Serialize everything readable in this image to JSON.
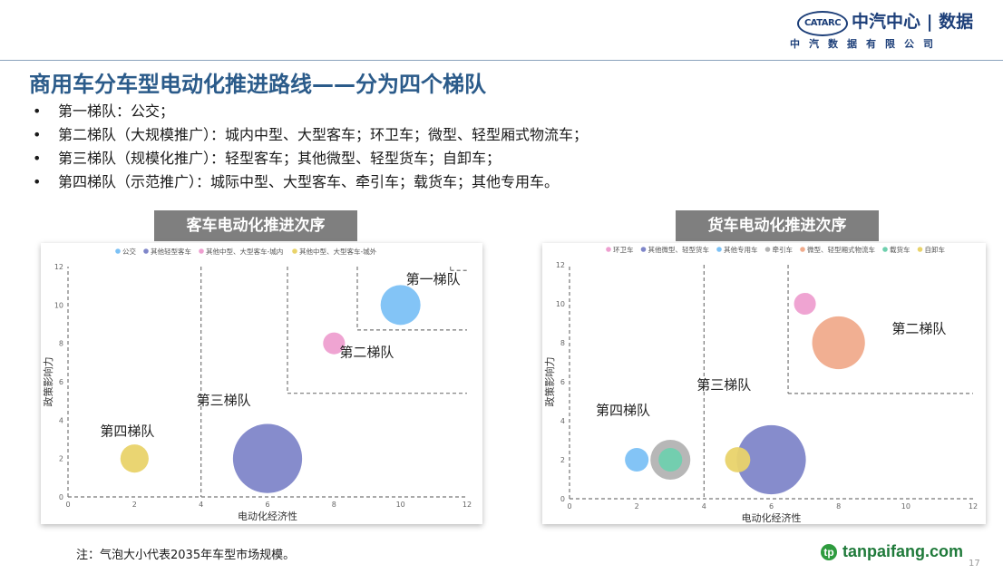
{
  "header": {
    "logo_mark": "CATARC",
    "logo_name": "中汽中心 | 数据",
    "logo_sub": "中汽数据有限公司"
  },
  "slide": {
    "title": "商用车分车型电动化推进路线——分为四个梯队",
    "bullets": [
      "第一梯队：公交；",
      "第二梯队（大规模推广）：城内中型、大型客车；环卫车；微型、轻型厢式物流车；",
      "第三梯队（规模化推广）：轻型客车；其他微型、轻型货车；自卸车；",
      "第四梯队（示范推广）：城际中型、大型客车、牵引车；载货车；其他专用车。"
    ],
    "bullet_marker": "•",
    "note": "注：气泡大小代表2035年车型市场规模。",
    "watermark": "tanpaifang.com",
    "page_number": "17"
  },
  "chart_data": [
    {
      "type": "scatter",
      "panel_title": "客车电动化推进次序",
      "xlabel": "电动化经济性",
      "ylabel": "政策影响力",
      "xlim": [
        0,
        12
      ],
      "ylim": [
        0,
        12
      ],
      "xticks": [
        0,
        2,
        4,
        6,
        8,
        10,
        12
      ],
      "yticks": [
        0,
        2,
        4,
        6,
        8,
        10,
        12
      ],
      "grid": false,
      "legend_position": "top",
      "series": [
        {
          "name": "公交",
          "color": "#7cc1f5",
          "points": [
            {
              "x": 10,
              "y": 10,
              "size": 1.0
            }
          ]
        },
        {
          "name": "其他轻型客车",
          "color": "#7f86c9",
          "points": [
            {
              "x": 6,
              "y": 2,
              "size": 3.0
            }
          ]
        },
        {
          "name": "其他中型、大型客车-城内",
          "color": "#ee9fd0",
          "points": [
            {
              "x": 8,
              "y": 8,
              "size": 0.3
            }
          ]
        },
        {
          "name": "其他中型、大型客车-城外",
          "color": "#e9d36a",
          "points": [
            {
              "x": 2,
              "y": 2,
              "size": 0.5
            }
          ]
        }
      ],
      "tier_labels": [
        {
          "text": "第一梯队",
          "x": 11.8,
          "y": 11.1
        },
        {
          "text": "第二梯队",
          "x": 9.8,
          "y": 7.3
        },
        {
          "text": "第三梯队",
          "x": 5.5,
          "y": 4.8
        },
        {
          "text": "第四梯队",
          "x": 2.6,
          "y": 3.2
        }
      ],
      "tier_boundaries": [
        {
          "x": 4,
          "y": 12
        },
        {
          "x": 6.6,
          "y": 5.4
        },
        {
          "x": 8.7,
          "y": 8.7
        },
        {
          "x": 11.5,
          "y": 11.8
        }
      ]
    },
    {
      "type": "scatter",
      "panel_title": "货车电动化推进次序",
      "xlabel": "电动化经济性",
      "ylabel": "政策影响力",
      "xlim": [
        0,
        12
      ],
      "ylim": [
        0,
        12
      ],
      "xticks": [
        0,
        2,
        4,
        6,
        8,
        10,
        12
      ],
      "yticks": [
        0,
        2,
        4,
        6,
        8,
        10,
        12
      ],
      "grid": false,
      "legend_position": "top",
      "series": [
        {
          "name": "环卫车",
          "color": "#ee9fd0",
          "points": [
            {
              "x": 7,
              "y": 10,
              "size": 0.3
            }
          ]
        },
        {
          "name": "其他微型、轻型货车",
          "color": "#7f86c9",
          "points": [
            {
              "x": 6,
              "y": 2,
              "size": 3.0
            }
          ]
        },
        {
          "name": "其他专用车",
          "color": "#7cc1f5",
          "points": [
            {
              "x": 2,
              "y": 2,
              "size": 0.35
            }
          ]
        },
        {
          "name": "牵引车",
          "color": "#b3b3b3",
          "points": [
            {
              "x": 3,
              "y": 2,
              "size": 1.0
            }
          ]
        },
        {
          "name": "微型、轻型厢式物流车",
          "color": "#f0ab8c",
          "points": [
            {
              "x": 8,
              "y": 8,
              "size": 1.75
            }
          ]
        },
        {
          "name": "载货车",
          "color": "#6fcfae",
          "points": [
            {
              "x": 3,
              "y": 2,
              "size": 0.35
            }
          ]
        },
        {
          "name": "自卸车",
          "color": "#e9d36a",
          "points": [
            {
              "x": 5,
              "y": 2,
              "size": 0.4
            }
          ]
        }
      ],
      "tier_labels": [
        {
          "text": "第二梯队",
          "x": 11.2,
          "y": 8.5
        },
        {
          "text": "第三梯队",
          "x": 5.4,
          "y": 5.6
        },
        {
          "text": "第四梯队",
          "x": 2.4,
          "y": 4.3
        }
      ],
      "tier_boundaries": [
        {
          "x": 4,
          "y": 12
        },
        {
          "x": 6.5,
          "y": 5.4
        }
      ]
    }
  ]
}
